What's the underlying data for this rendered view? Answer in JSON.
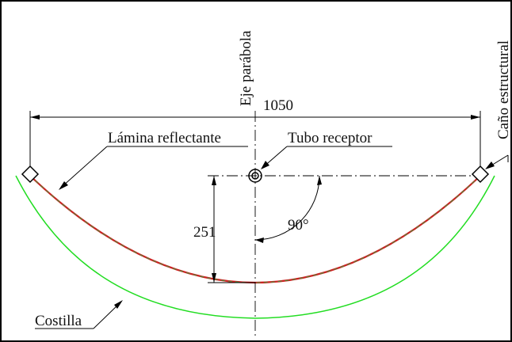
{
  "labels": {
    "axis": "Eje parábola",
    "width": "1050",
    "sheet": "Lámina reflectante",
    "receiver": "Tubo receptor",
    "pipe": "Caño estructural",
    "depth": "251",
    "angle": "90°",
    "rib": "Costilla"
  },
  "colors": {
    "frame": "#000000",
    "dimension_lines": "#000000",
    "reflective_sheet": "#cc2222",
    "reflective_sheet_overlay": "#3a9a3a",
    "rib": "#22dd22",
    "receiver_tube": "#000000"
  }
}
